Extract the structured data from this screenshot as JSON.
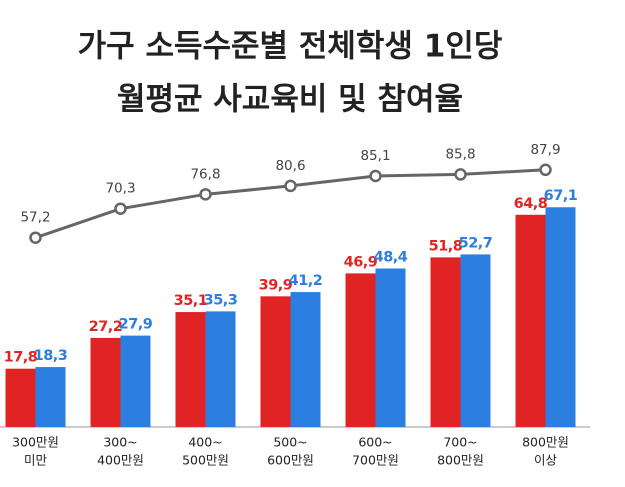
{
  "chart_data": {
    "type": "bar",
    "title": [
      "가구 소득수준별 전체학생 1인당",
      "월평균 사교육비 및 참여율"
    ],
    "categories": [
      [
        "300만원",
        "미만"
      ],
      [
        "300~",
        "400만원"
      ],
      [
        "400~",
        "500만원"
      ],
      [
        "500~",
        "600만원"
      ],
      [
        "600~",
        "700만원"
      ],
      [
        "700~",
        "800만원"
      ],
      [
        "800만원",
        "이상"
      ]
    ],
    "series": [
      {
        "color": "#e02424",
        "values": [
          17.8,
          27.2,
          35.1,
          39.9,
          46.9,
          51.8,
          64.8
        ],
        "value_labels": [
          "17,8",
          "27,2",
          "35,1",
          "39,9",
          "46,9",
          "51,8",
          "64,8"
        ]
      },
      {
        "color": "#2b7fe0",
        "values": [
          18.3,
          27.9,
          35.3,
          41.2,
          48.4,
          52.7,
          67.1
        ],
        "value_labels": [
          "18,3",
          "27,9",
          "35,3",
          "41,2",
          "48,4",
          "52,7",
          "67,1"
        ]
      },
      {
        "type": "line",
        "axis": "y2",
        "color": "#666666",
        "values": [
          57.2,
          70.3,
          76.8,
          80.6,
          85.1,
          85.8,
          87.9
        ],
        "value_labels": [
          "57,2",
          "70,3",
          "76,8",
          "80,6",
          "85,1",
          "85,8",
          "87,9"
        ]
      }
    ],
    "ylim": [
      0,
      80
    ],
    "y2lim": [
      20,
      100
    ]
  }
}
